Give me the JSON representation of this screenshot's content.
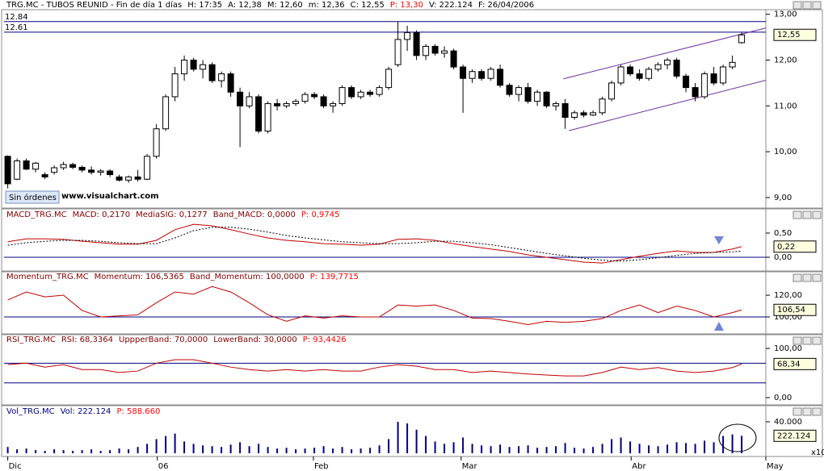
{
  "chart_data": [
    {
      "type": "candlestick",
      "title": "TRG.MC - TUBOS REUNID - Fin de día 1 días",
      "title_color": "#000000",
      "info": [
        "H: 17:35",
        "A: 12,38",
        "M: 12,60",
        "m: 12,36",
        "C: 12,55",
        "P: 13,30",
        "V: 222.124",
        "F: 26/04/2006"
      ],
      "info_colors": [
        "#000000",
        "#000000",
        "#000000",
        "#000000",
        "#000000",
        "#ff0000",
        "#000000",
        "#000000"
      ],
      "open": [
        9.9,
        9.4,
        9.8,
        9.62,
        9.5,
        9.55,
        9.65,
        9.72,
        9.66,
        9.6,
        9.55,
        9.58,
        9.45,
        9.38,
        9.45,
        9.4,
        9.9,
        10.5,
        11.2,
        11.7,
        12.0,
        11.8,
        11.9,
        11.55,
        11.7,
        11.3,
        11.0,
        11.2,
        10.45,
        11.05,
        11.0,
        11.05,
        11.1,
        11.25,
        11.2,
        11.0,
        11.05,
        11.4,
        11.2,
        11.3,
        11.25,
        11.4,
        11.9,
        12.45,
        12.6,
        12.1,
        12.3,
        12.15,
        12.2,
        11.85,
        11.6,
        11.75,
        11.6,
        11.8,
        11.45,
        11.25,
        11.4,
        11.1,
        11.3,
        11.0,
        11.05,
        10.75,
        10.85,
        10.8,
        10.85,
        11.15,
        11.5,
        11.85,
        11.7,
        11.6,
        11.8,
        11.9,
        12.0,
        11.65,
        11.4,
        11.2,
        11.7,
        11.5,
        11.85,
        12.38
      ],
      "high": [
        9.92,
        9.85,
        9.85,
        9.78,
        9.55,
        9.7,
        9.78,
        9.76,
        9.7,
        9.68,
        9.62,
        9.62,
        9.5,
        9.48,
        9.6,
        9.95,
        10.6,
        11.25,
        11.85,
        12.1,
        12.05,
        12.0,
        11.95,
        11.75,
        11.75,
        11.4,
        11.3,
        11.25,
        11.1,
        11.15,
        11.1,
        11.15,
        11.3,
        11.3,
        11.25,
        11.1,
        11.45,
        11.45,
        11.35,
        11.35,
        11.45,
        11.85,
        12.84,
        12.75,
        12.65,
        12.35,
        12.35,
        12.3,
        12.25,
        11.9,
        11.8,
        11.8,
        11.85,
        11.9,
        11.5,
        11.45,
        11.5,
        11.35,
        11.32,
        11.1,
        11.15,
        10.9,
        10.9,
        10.9,
        11.2,
        11.55,
        11.9,
        11.9,
        11.8,
        11.85,
        11.95,
        12.05,
        12.05,
        11.7,
        11.5,
        11.75,
        11.85,
        11.9,
        12.1,
        12.6
      ],
      "low": [
        9.2,
        9.38,
        9.6,
        9.55,
        9.4,
        9.5,
        9.6,
        9.62,
        9.55,
        9.5,
        9.48,
        9.45,
        9.35,
        9.32,
        9.35,
        9.38,
        9.85,
        10.45,
        11.1,
        11.55,
        11.75,
        11.6,
        11.5,
        11.4,
        11.2,
        10.1,
        10.95,
        10.4,
        10.4,
        10.9,
        10.95,
        11.0,
        11.05,
        11.15,
        10.95,
        10.85,
        11.0,
        11.15,
        11.15,
        11.2,
        11.2,
        11.35,
        11.85,
        12.2,
        12.0,
        12.0,
        12.1,
        12.05,
        11.8,
        10.85,
        11.5,
        11.55,
        11.55,
        11.4,
        11.2,
        11.1,
        11.05,
        11.0,
        10.95,
        10.9,
        10.5,
        10.7,
        10.75,
        10.78,
        10.8,
        11.1,
        11.45,
        11.65,
        11.55,
        11.55,
        11.75,
        11.8,
        11.6,
        11.3,
        11.1,
        11.15,
        11.45,
        11.45,
        11.8,
        12.36
      ],
      "close": [
        9.3,
        9.8,
        9.62,
        9.75,
        9.45,
        9.65,
        9.72,
        9.66,
        9.6,
        9.55,
        9.58,
        9.5,
        9.38,
        9.45,
        9.4,
        9.9,
        10.5,
        11.2,
        11.7,
        12.0,
        11.8,
        11.9,
        11.55,
        11.7,
        11.3,
        11.0,
        11.2,
        10.45,
        11.05,
        11.0,
        11.05,
        11.1,
        11.25,
        11.2,
        11.0,
        11.05,
        11.4,
        11.2,
        11.3,
        11.25,
        11.4,
        11.8,
        12.45,
        12.6,
        12.1,
        12.3,
        12.15,
        12.2,
        11.85,
        11.6,
        11.75,
        11.6,
        11.8,
        11.45,
        11.25,
        11.4,
        11.1,
        11.3,
        11.0,
        11.05,
        10.75,
        10.85,
        10.8,
        10.85,
        11.15,
        11.5,
        11.85,
        11.7,
        11.6,
        11.8,
        11.9,
        12.0,
        11.65,
        11.4,
        11.2,
        11.7,
        11.5,
        11.85,
        11.95,
        12.55
      ],
      "color_up": "#ffffff",
      "color_down": "#000000",
      "ylim": [
        8.77,
        13.1
      ],
      "yticks": [
        {
          "value": 13,
          "label": "13,00"
        },
        {
          "value": 12,
          "label": "12,00"
        },
        {
          "value": 11,
          "label": "11,00"
        },
        {
          "value": 10,
          "label": "10,00"
        },
        {
          "value": 9,
          "label": "9,00"
        }
      ],
      "xlim": [
        -0.4,
        81.6
      ],
      "xticks": [
        {
          "value": 0,
          "label": "Dic"
        },
        {
          "value": 16.1,
          "label": "06"
        },
        {
          "value": 32.9,
          "label": "Feb"
        },
        {
          "value": 48.8,
          "label": "Mar"
        },
        {
          "value": 67.1,
          "label": "Abr"
        },
        {
          "value": 81.6,
          "label": "May"
        }
      ],
      "levels": [
        {
          "value": 12.84,
          "label": "12.84"
        },
        {
          "value": 12.61,
          "label": "12.61"
        }
      ],
      "level_color": "#000080",
      "trendlines": [
        {
          "x": [
            59.8,
            81.6
          ],
          "y": [
            11.59,
            12.7
          ]
        },
        {
          "x": [
            60.4,
            81.6
          ],
          "y": [
            10.46,
            11.56
          ]
        }
      ],
      "trendline_color": "#7030a0",
      "last_label": "12,55",
      "watermark": "www.visualchart.com",
      "button": "Sin órdenes"
    },
    {
      "type": "line",
      "title": "MACD_TRG.MC",
      "title_color": "#800000",
      "info": [
        "MACD: 0,2170",
        "MediaSIG: 0,1277",
        "Band_MACD: 0,0000",
        "P: 0,9745"
      ],
      "info_colors": [
        "#800000",
        "#800000",
        "#800000",
        "#ff0000"
      ],
      "x": [
        0,
        2,
        4,
        6,
        8,
        10,
        12,
        14,
        16,
        18,
        20,
        22,
        24,
        26,
        28,
        30,
        32,
        34,
        36,
        38,
        40,
        42,
        44,
        46,
        48,
        50,
        52,
        54,
        56,
        58,
        60,
        62,
        64,
        66,
        68,
        70,
        72,
        74,
        76,
        78,
        79
      ],
      "series": [
        {
          "color": "#c00000",
          "dash": false,
          "values": [
            0.32,
            0.38,
            0.38,
            0.37,
            0.33,
            0.3,
            0.27,
            0.27,
            0.35,
            0.57,
            0.68,
            0.65,
            0.57,
            0.48,
            0.4,
            0.35,
            0.32,
            0.28,
            0.27,
            0.25,
            0.27,
            0.37,
            0.38,
            0.35,
            0.28,
            0.22,
            0.17,
            0.12,
            0.05,
            0.0,
            -0.05,
            -0.1,
            -0.12,
            -0.05,
            0.02,
            0.08,
            0.13,
            0.1,
            0.1,
            0.17,
            0.22
          ]
        },
        {
          "color": "#000000",
          "dash": true,
          "values": [
            0.25,
            0.3,
            0.33,
            0.35,
            0.35,
            0.33,
            0.3,
            0.28,
            0.28,
            0.4,
            0.55,
            0.62,
            0.62,
            0.58,
            0.52,
            0.45,
            0.4,
            0.36,
            0.32,
            0.3,
            0.28,
            0.28,
            0.3,
            0.33,
            0.33,
            0.3,
            0.26,
            0.2,
            0.14,
            0.08,
            0.03,
            -0.02,
            -0.06,
            -0.08,
            -0.05,
            -0.01,
            0.04,
            0.08,
            0.1,
            0.11,
            0.13
          ]
        }
      ],
      "bands": [
        0
      ],
      "band_color": "#000080",
      "ylim": [
        -0.217,
        0.733
      ],
      "yticks": [
        {
          "value": 0.5,
          "label": "0,50"
        },
        {
          "value": 0,
          "label": "0,00"
        }
      ],
      "last_label": "0,22"
    },
    {
      "type": "line",
      "title": "Momentum_TRG.MC",
      "title_color": "#800000",
      "info": [
        "Momentum: 106,5365",
        "Band_Momentum: 100,0000",
        "P: 139,7715"
      ],
      "info_colors": [
        "#800000",
        "#800000",
        "#ff0000"
      ],
      "x": [
        0,
        2,
        4,
        6,
        8,
        10,
        12,
        14,
        16,
        18,
        20,
        22,
        24,
        26,
        28,
        30,
        32,
        34,
        36,
        38,
        40,
        42,
        44,
        46,
        48,
        50,
        52,
        54,
        56,
        58,
        60,
        62,
        64,
        66,
        68,
        70,
        72,
        74,
        76,
        78,
        79
      ],
      "series": [
        {
          "color": "#c00000",
          "dash": false,
          "values": [
            115.6,
            123,
            118.5,
            120,
            106,
            100,
            101,
            102,
            113,
            123,
            121,
            128,
            123,
            113,
            102,
            96,
            101,
            99,
            101,
            100,
            100,
            111,
            110,
            111,
            106,
            99,
            98.5,
            96,
            93,
            96,
            95,
            96,
            98.5,
            106,
            111,
            104,
            110,
            106,
            100,
            104,
            106.5
          ]
        }
      ],
      "bands": [
        100
      ],
      "band_color": "#000080",
      "ylim": [
        87.4,
        131.9
      ],
      "yticks": [
        {
          "value": 120,
          "label": "120,00"
        },
        {
          "value": 100,
          "label": "100,00"
        }
      ],
      "last_label": "106,54"
    },
    {
      "type": "line",
      "title": "RSI_TRG.MC",
      "title_color": "#800000",
      "info": [
        "RSI: 68,3364",
        "UppperBand: 70,0000",
        "LowerBand: 30,0000",
        "P: 93,4426"
      ],
      "info_colors": [
        "#800000",
        "#800000",
        "#800000",
        "#ff0000"
      ],
      "x": [
        0,
        2,
        4,
        6,
        8,
        10,
        12,
        14,
        16,
        18,
        20,
        22,
        24,
        26,
        28,
        30,
        32,
        34,
        36,
        38,
        40,
        42,
        44,
        46,
        48,
        50,
        52,
        54,
        56,
        58,
        60,
        62,
        64,
        66,
        68,
        70,
        72,
        74,
        76,
        78,
        79
      ],
      "series": [
        {
          "color": "#c00000",
          "dash": false,
          "values": [
            67,
            70,
            62,
            67,
            57,
            57,
            51,
            54,
            70,
            77,
            77,
            70,
            62,
            57,
            54,
            57,
            54,
            57,
            54,
            54,
            62,
            67,
            64,
            57,
            57,
            51,
            54,
            51,
            48,
            46,
            44,
            44,
            51,
            62,
            57,
            61,
            54,
            51,
            54,
            61,
            68.3
          ]
        }
      ],
      "bands": [
        70,
        30
      ],
      "band_color": "#000080",
      "ylim": [
        -11.5,
        106.6
      ],
      "yticks": [
        {
          "value": 100,
          "label": "100,00"
        },
        {
          "value": 0,
          "label": "0,00"
        }
      ],
      "last_label": "68,34"
    },
    {
      "type": "bar",
      "title": "Vol_TRG.MC",
      "title_color": "#000080",
      "info": [
        "Vol: 222.124",
        "P: 588.660"
      ],
      "info_colors": [
        "#000080",
        "#ff0000"
      ],
      "values": [
        8000,
        5000,
        6000,
        4000,
        3000,
        5000,
        4000,
        3000,
        4000,
        5000,
        3000,
        4000,
        6000,
        5000,
        8000,
        12000,
        18000,
        22000,
        25000,
        15000,
        12000,
        10000,
        9000,
        8000,
        11000,
        14000,
        9000,
        12000,
        8000,
        6000,
        7000,
        5000,
        6000,
        7000,
        9000,
        6000,
        8000,
        5000,
        6000,
        7000,
        10000,
        18000,
        40000,
        38000,
        30000,
        22000,
        15000,
        12000,
        14000,
        20000,
        12000,
        10000,
        9000,
        11000,
        8000,
        9000,
        10000,
        7000,
        8000,
        9000,
        13000,
        7000,
        6000,
        8000,
        12000,
        18000,
        20000,
        15000,
        12000,
        10000,
        9000,
        11000,
        14000,
        13000,
        12000,
        16000,
        14000,
        22000,
        24000,
        22212
      ],
      "color": "#000080",
      "ylim": [
        0,
        46154
      ],
      "yticks": [
        {
          "value": 40000,
          "label": "40.000"
        }
      ],
      "last_label": "222.124",
      "multiplier_label": "x10"
    }
  ]
}
